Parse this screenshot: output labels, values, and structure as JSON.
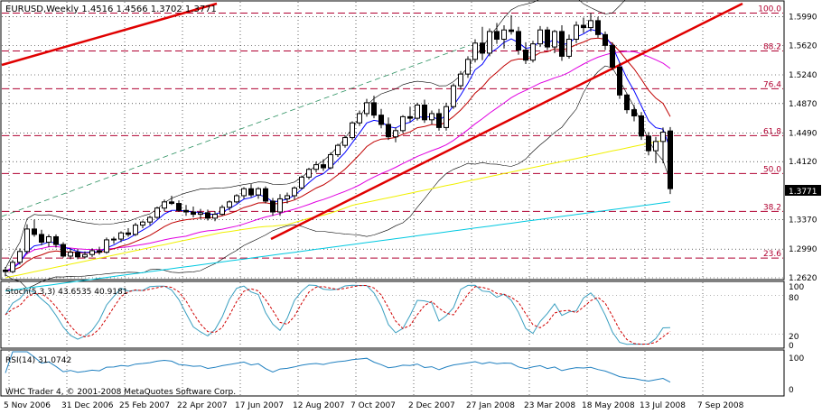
{
  "title": "EURUSD,Weekly  1.4516 1.4566 1.3702 1.3771",
  "copyright": "WHC Trader 4, © 2001-2008 MetaQuotes Software Corp.",
  "stoch_label": "Stoch(5,3,3) 43.6535 40.9181",
  "rsi_label": "RSI(14) 31.0742",
  "last_price_label": "1.3771",
  "colors": {
    "bull": "#ffffff",
    "bear": "#000000",
    "trend": "#e00000",
    "fib": "#b00030",
    "grid": "#000000",
    "ma_blue": "#0000ff",
    "ma_red": "#c00000",
    "ma_magenta": "#e000e0",
    "ma_yellow": "#f0f000",
    "ma_cyan": "#00c8e0",
    "envelope": "#000000",
    "stoch_main": "#3a9fc0",
    "stoch_signal": "#d00000",
    "rsi": "#2080c0"
  },
  "chart_data": {
    "type": "candlestick",
    "symbol": "EURUSD",
    "timeframe": "Weekly",
    "ylim": [
      1.262,
      1.609
    ],
    "price_axis_ticks": [
      "1.5990",
      "1.5620",
      "1.5240",
      "1.4870",
      "1.4490",
      "1.4120",
      "1.3771",
      "1.3370",
      "1.2990",
      "1.2620"
    ],
    "price_axis_tick_values": [
      1.599,
      1.562,
      1.524,
      1.487,
      1.449,
      1.412,
      1.3771,
      1.337,
      1.299,
      1.262
    ],
    "x_tick_labels": [
      "5 Nov 2006",
      "31 Dec 2006",
      "25 Feb 2007",
      "22 Apr 2007",
      "17 Jun 2007",
      "12 Aug 2007",
      "7 Oct 2007",
      "2 Dec 2007",
      "27 Jan 2008",
      "23 Mar 2008",
      "18 May 2008",
      "13 Jul 2008",
      "7 Sep 2008"
    ],
    "x_tick_week_index": [
      0,
      8,
      16,
      24,
      32,
      40,
      48,
      56,
      64,
      72,
      80,
      88,
      96
    ],
    "fib_levels": [
      {
        "label": "100.0",
        "price": 1.6038
      },
      {
        "label": "88.2",
        "price": 1.5549
      },
      {
        "label": "76.4",
        "price": 1.5061
      },
      {
        "label": "61.8",
        "price": 1.4456
      },
      {
        "label": "50.0",
        "price": 1.3967
      },
      {
        "label": "38.2",
        "price": 1.3478
      },
      {
        "label": "23.6",
        "price": 1.2874
      }
    ],
    "candles": [
      [
        1.272,
        1.276,
        1.264,
        1.27
      ],
      [
        1.27,
        1.285,
        1.268,
        1.282
      ],
      [
        1.282,
        1.3,
        1.279,
        1.296
      ],
      [
        1.296,
        1.331,
        1.293,
        1.325
      ],
      [
        1.325,
        1.337,
        1.315,
        1.318
      ],
      [
        1.318,
        1.324,
        1.304,
        1.308
      ],
      [
        1.308,
        1.318,
        1.302,
        1.315
      ],
      [
        1.315,
        1.318,
        1.301,
        1.305
      ],
      [
        1.305,
        1.308,
        1.288,
        1.29
      ],
      [
        1.29,
        1.3,
        1.286,
        1.295
      ],
      [
        1.295,
        1.299,
        1.286,
        1.289
      ],
      [
        1.289,
        1.296,
        1.287,
        1.292
      ],
      [
        1.292,
        1.3,
        1.289,
        1.297
      ],
      [
        1.297,
        1.302,
        1.292,
        1.295
      ],
      [
        1.295,
        1.314,
        1.293,
        1.311
      ],
      [
        1.311,
        1.315,
        1.306,
        1.312
      ],
      [
        1.312,
        1.322,
        1.308,
        1.32
      ],
      [
        1.32,
        1.326,
        1.315,
        1.318
      ],
      [
        1.318,
        1.333,
        1.316,
        1.33
      ],
      [
        1.33,
        1.336,
        1.326,
        1.334
      ],
      [
        1.334,
        1.342,
        1.33,
        1.34
      ],
      [
        1.34,
        1.354,
        1.338,
        1.352
      ],
      [
        1.352,
        1.363,
        1.348,
        1.36
      ],
      [
        1.36,
        1.368,
        1.356,
        1.358
      ],
      [
        1.358,
        1.362,
        1.347,
        1.349
      ],
      [
        1.349,
        1.356,
        1.342,
        1.347
      ],
      [
        1.347,
        1.354,
        1.34,
        1.344
      ],
      [
        1.344,
        1.351,
        1.338,
        1.346
      ],
      [
        1.346,
        1.35,
        1.336,
        1.339
      ],
      [
        1.339,
        1.348,
        1.335,
        1.344
      ],
      [
        1.344,
        1.356,
        1.342,
        1.353
      ],
      [
        1.353,
        1.362,
        1.349,
        1.36
      ],
      [
        1.36,
        1.37,
        1.358,
        1.368
      ],
      [
        1.368,
        1.379,
        1.364,
        1.377
      ],
      [
        1.377,
        1.383,
        1.366,
        1.369
      ],
      [
        1.369,
        1.379,
        1.364,
        1.377
      ],
      [
        1.377,
        1.38,
        1.358,
        1.361
      ],
      [
        1.361,
        1.365,
        1.342,
        1.347
      ],
      [
        1.347,
        1.37,
        1.342,
        1.364
      ],
      [
        1.364,
        1.372,
        1.358,
        1.368
      ],
      [
        1.368,
        1.38,
        1.363,
        1.378
      ],
      [
        1.378,
        1.394,
        1.376,
        1.392
      ],
      [
        1.392,
        1.404,
        1.389,
        1.402
      ],
      [
        1.402,
        1.412,
        1.398,
        1.408
      ],
      [
        1.408,
        1.415,
        1.4,
        1.404
      ],
      [
        1.404,
        1.424,
        1.402,
        1.421
      ],
      [
        1.421,
        1.435,
        1.418,
        1.433
      ],
      [
        1.433,
        1.446,
        1.43,
        1.443
      ],
      [
        1.443,
        1.464,
        1.44,
        1.462
      ],
      [
        1.462,
        1.478,
        1.458,
        1.474
      ],
      [
        1.474,
        1.493,
        1.47,
        1.488
      ],
      [
        1.488,
        1.497,
        1.468,
        1.472
      ],
      [
        1.472,
        1.48,
        1.455,
        1.46
      ],
      [
        1.46,
        1.469,
        1.44,
        1.444
      ],
      [
        1.444,
        1.456,
        1.437,
        1.452
      ],
      [
        1.452,
        1.472,
        1.449,
        1.47
      ],
      [
        1.47,
        1.483,
        1.463,
        1.468
      ],
      [
        1.468,
        1.488,
        1.465,
        1.485
      ],
      [
        1.485,
        1.492,
        1.462,
        1.466
      ],
      [
        1.466,
        1.478,
        1.46,
        1.474
      ],
      [
        1.474,
        1.48,
        1.452,
        1.456
      ],
      [
        1.456,
        1.488,
        1.452,
        1.483
      ],
      [
        1.483,
        1.513,
        1.48,
        1.51
      ],
      [
        1.51,
        1.529,
        1.505,
        1.525
      ],
      [
        1.525,
        1.548,
        1.52,
        1.544
      ],
      [
        1.544,
        1.57,
        1.54,
        1.565
      ],
      [
        1.565,
        1.586,
        1.543,
        1.552
      ],
      [
        1.552,
        1.584,
        1.548,
        1.58
      ],
      [
        1.58,
        1.591,
        1.564,
        1.57
      ],
      [
        1.57,
        1.588,
        1.558,
        1.582
      ],
      [
        1.582,
        1.601,
        1.576,
        1.58
      ],
      [
        1.58,
        1.586,
        1.55,
        1.556
      ],
      [
        1.556,
        1.566,
        1.538,
        1.543
      ],
      [
        1.543,
        1.568,
        1.54,
        1.564
      ],
      [
        1.564,
        1.587,
        1.56,
        1.582
      ],
      [
        1.582,
        1.586,
        1.556,
        1.56
      ],
      [
        1.56,
        1.582,
        1.552,
        1.58
      ],
      [
        1.58,
        1.588,
        1.542,
        1.548
      ],
      [
        1.548,
        1.576,
        1.545,
        1.57
      ],
      [
        1.57,
        1.593,
        1.565,
        1.588
      ],
      [
        1.588,
        1.598,
        1.578,
        1.585
      ],
      [
        1.585,
        1.604,
        1.58,
        1.594
      ],
      [
        1.594,
        1.599,
        1.572,
        1.576
      ],
      [
        1.576,
        1.58,
        1.556,
        1.562
      ],
      [
        1.562,
        1.566,
        1.53,
        1.534
      ],
      [
        1.534,
        1.54,
        1.493,
        1.498
      ],
      [
        1.498,
        1.5,
        1.474,
        1.479
      ],
      [
        1.479,
        1.485,
        1.464,
        1.471
      ],
      [
        1.471,
        1.476,
        1.44,
        1.445
      ],
      [
        1.445,
        1.45,
        1.42,
        1.426
      ],
      [
        1.426,
        1.444,
        1.41,
        1.438
      ],
      [
        1.438,
        1.456,
        1.41,
        1.45
      ],
      [
        1.4516,
        1.4566,
        1.3702,
        1.3771
      ]
    ]
  }
}
